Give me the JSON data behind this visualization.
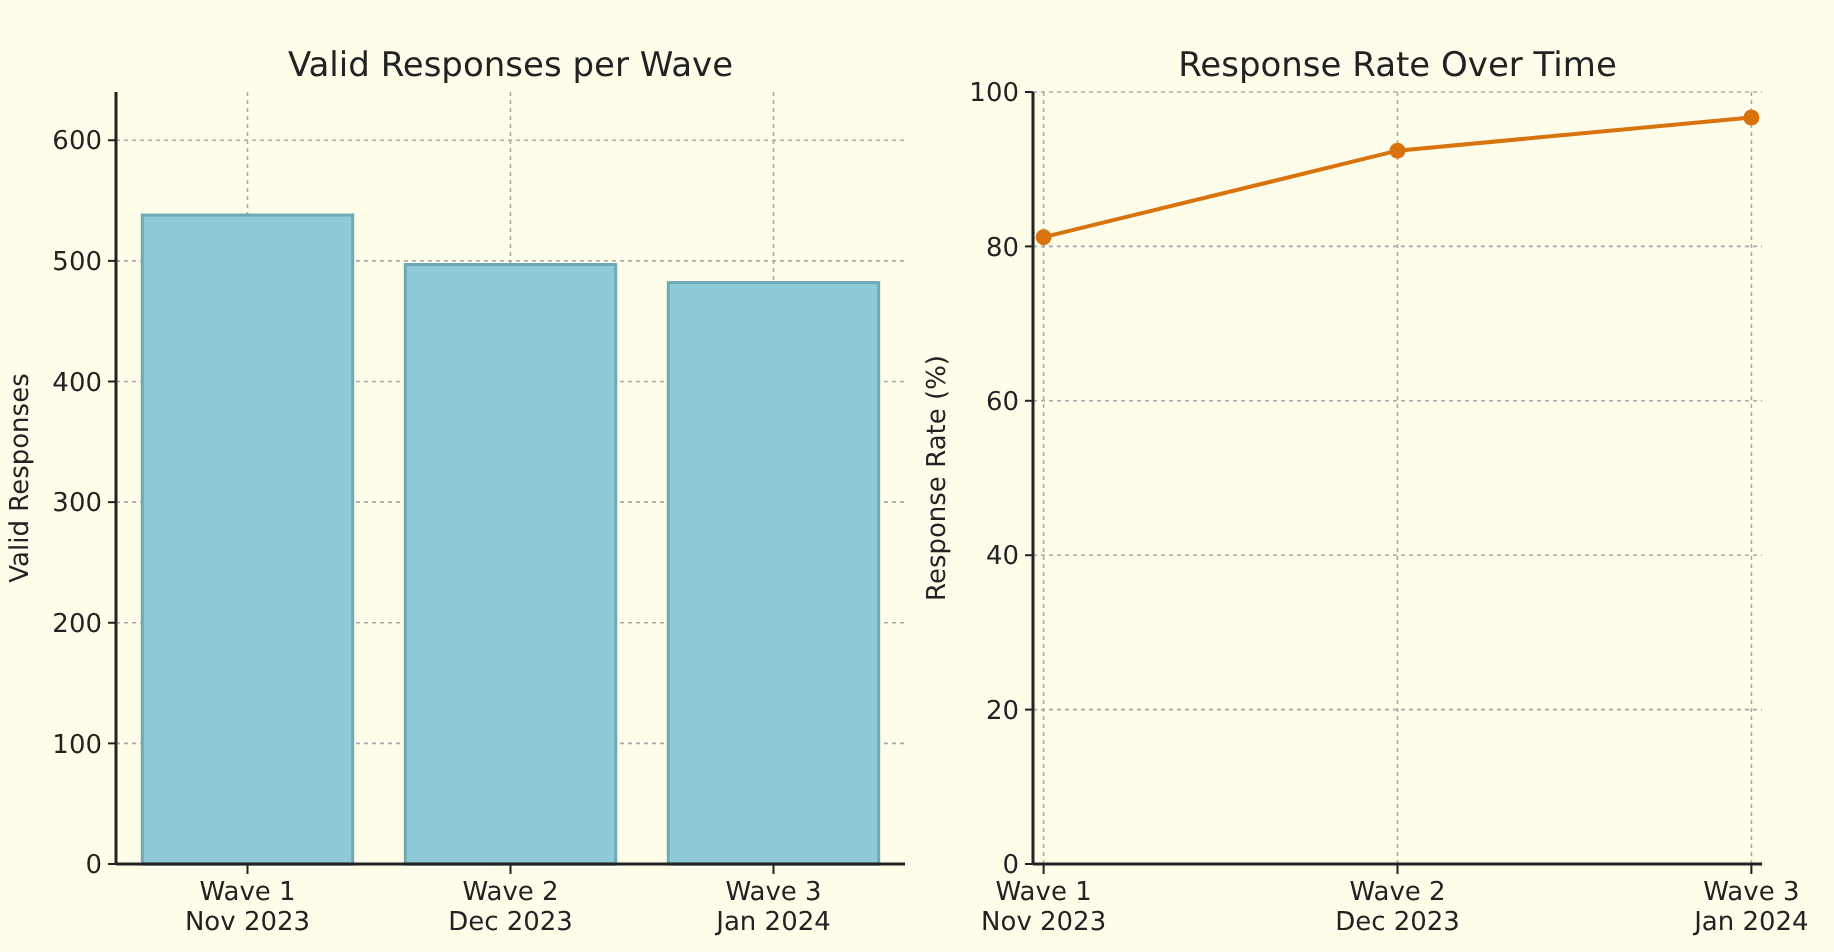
{
  "chart_data": [
    {
      "type": "bar",
      "title": "Valid Responses per Wave",
      "ylabel": "Valid Responses",
      "categories": [
        "Wave 1\nNov 2023",
        "Wave 2\nDec 2023",
        "Wave 3\nJan 2024"
      ],
      "values": [
        538,
        497,
        482
      ],
      "color": "#8fcbd6",
      "ylim": [
        0,
        640
      ],
      "yticks": [
        0,
        100,
        200,
        300,
        400,
        500,
        600
      ],
      "grid": true
    },
    {
      "type": "line",
      "title": "Response Rate Over Time",
      "ylabel": "Response Rate (%)",
      "categories": [
        "Wave 1\nNov 2023",
        "Wave 2\nDec 2023",
        "Wave 3\nJan 2024"
      ],
      "values": [
        81.2,
        92.4,
        96.7
      ],
      "color": "#d8730e",
      "marker": "circle",
      "ylim": [
        0,
        100
      ],
      "yticks": [
        0,
        20,
        40,
        60,
        80,
        100
      ],
      "grid": true
    }
  ]
}
